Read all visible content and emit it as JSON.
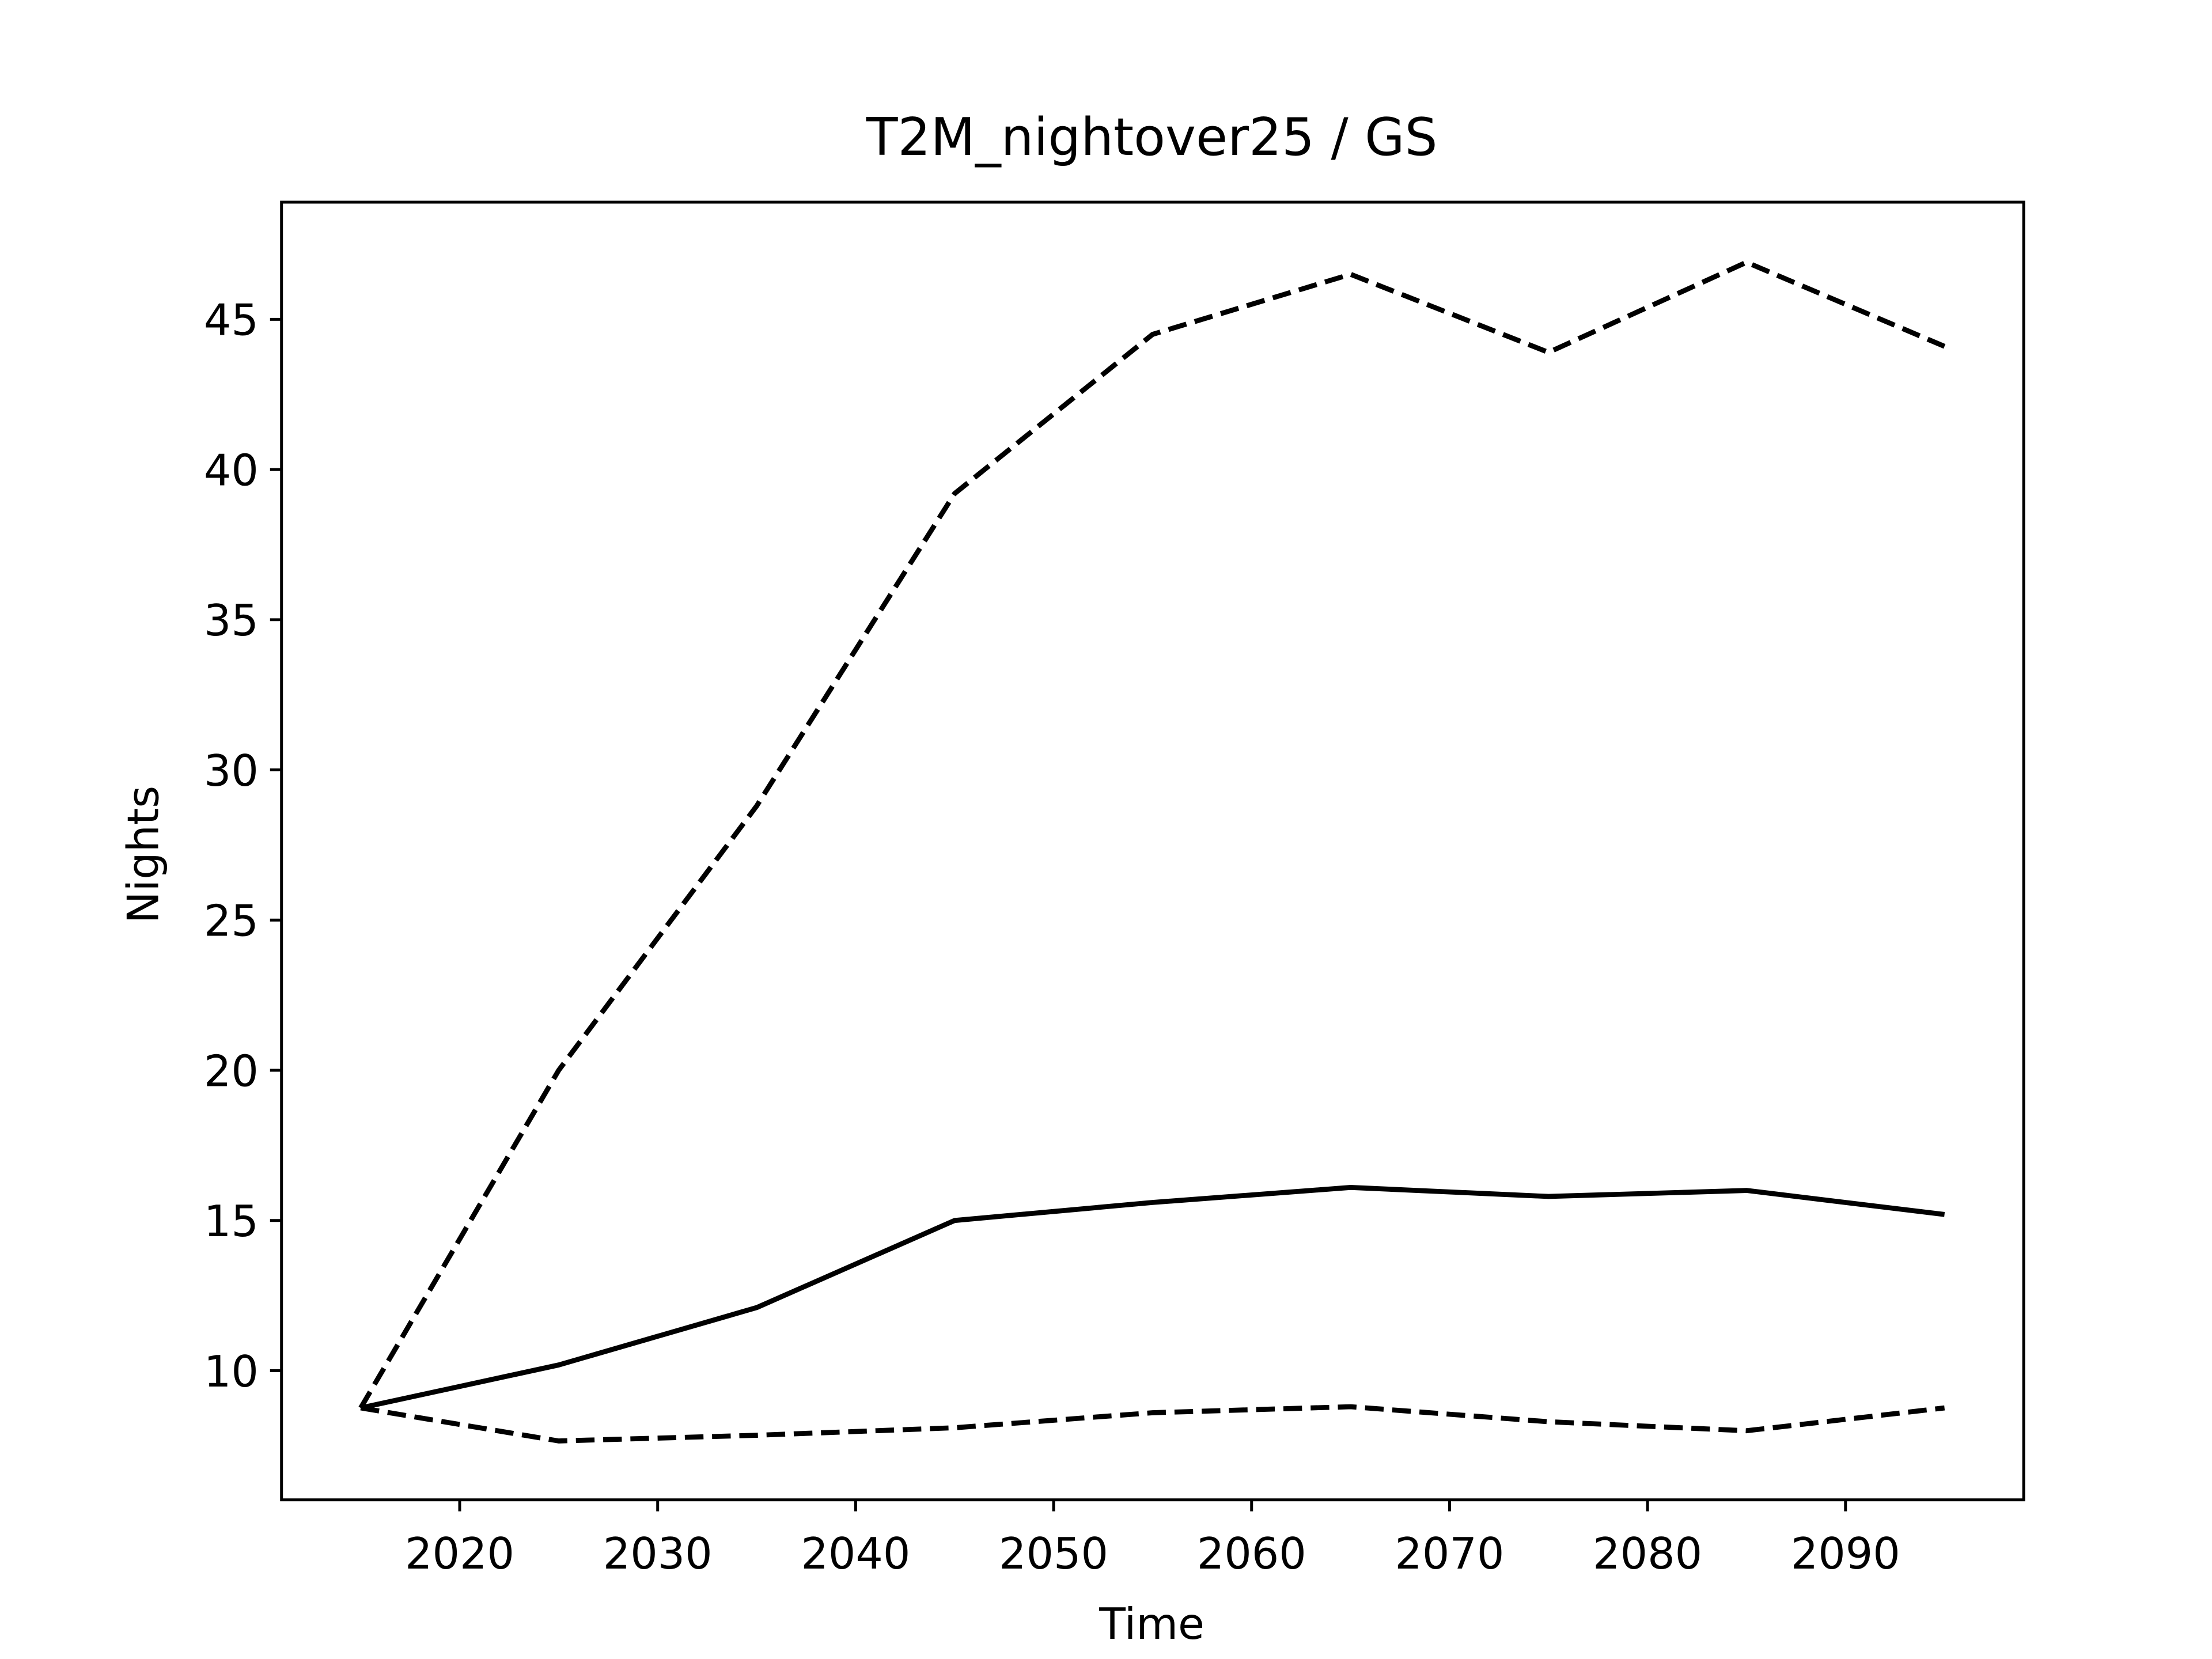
{
  "chart_data": {
    "type": "line",
    "title": "T2M_nightover25 / GS",
    "x_label": "Time",
    "y_label": "Nights",
    "x": [
      2015,
      2025,
      2035,
      2045,
      2055,
      2065,
      2075,
      2085,
      2095
    ],
    "series": [
      {
        "color": "#000000",
        "dashed": false,
        "values": [
          8.76,
          10.19,
          12.1,
          15.0,
          15.6,
          16.1,
          15.8,
          16.0,
          15.2
        ]
      },
      {
        "color": "#000000",
        "dashed": true,
        "values": [
          8.76,
          20.0,
          28.8,
          39.2,
          44.5,
          46.5,
          43.9,
          46.9,
          44.1
        ]
      },
      {
        "color": "#000000",
        "dashed": true,
        "values": [
          8.76,
          7.66,
          7.85,
          8.1,
          8.6,
          8.8,
          8.3,
          8.0,
          8.76
        ]
      }
    ],
    "xlim": [
      2011,
      2099
    ],
    "xticks": [
      2020,
      2030,
      2040,
      2050,
      2060,
      2070,
      2080,
      2090
    ],
    "ylim": [
      5.7,
      48.9
    ],
    "yticks": [
      10,
      15,
      20,
      25,
      30,
      35,
      40,
      45
    ],
    "grid": false
  }
}
